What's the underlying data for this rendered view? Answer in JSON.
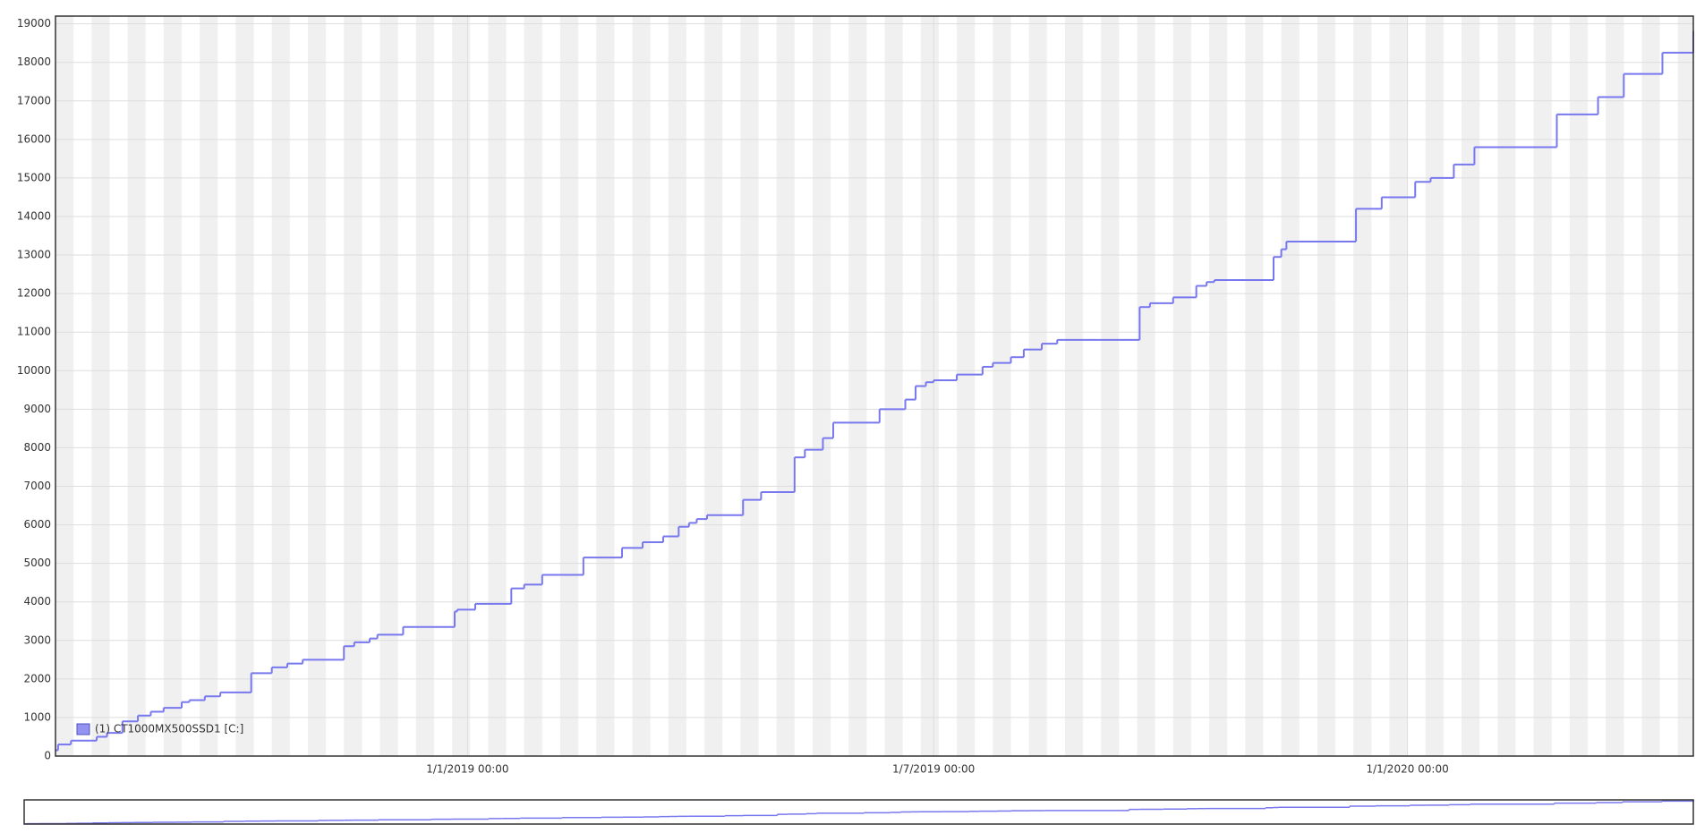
{
  "chart_data": {
    "type": "line",
    "step": "after",
    "grid": true,
    "legend": "lower left",
    "xlim": [
      "2018-07-25",
      "2020-04-21"
    ],
    "xticks": [
      {
        "value": "2019-01-01",
        "label": "1/1/2019 00:00"
      },
      {
        "value": "2019-07-01",
        "label": "1/7/2019 00:00"
      },
      {
        "value": "2020-01-01",
        "label": "1/1/2020 00:00"
      }
    ],
    "ylim": [
      0,
      19200
    ],
    "yticks": [
      0,
      1000,
      2000,
      3000,
      4000,
      5000,
      6000,
      7000,
      8000,
      9000,
      10000,
      11000,
      12000,
      13000,
      14000,
      15000,
      16000,
      17000,
      18000,
      19000
    ],
    "x": [
      "2018-07-25",
      "2018-07-26",
      "2018-07-31",
      "2018-08-10",
      "2018-08-14",
      "2018-08-20",
      "2018-08-26",
      "2018-08-31",
      "2018-09-05",
      "2018-09-12",
      "2018-09-15",
      "2018-09-21",
      "2018-09-27",
      "2018-10-09",
      "2018-10-17",
      "2018-10-23",
      "2018-10-29",
      "2018-11-14",
      "2018-11-18",
      "2018-11-24",
      "2018-11-27",
      "2018-12-07",
      "2018-12-27",
      "2018-12-28",
      "2019-01-04",
      "2019-01-18",
      "2019-01-23",
      "2019-01-30",
      "2019-02-15",
      "2019-03-02",
      "2019-03-10",
      "2019-03-18",
      "2019-03-24",
      "2019-03-28",
      "2019-03-31",
      "2019-04-04",
      "2019-04-18",
      "2019-04-25",
      "2019-05-08",
      "2019-05-12",
      "2019-05-19",
      "2019-05-23",
      "2019-06-10",
      "2019-06-20",
      "2019-06-24",
      "2019-06-28",
      "2019-07-01",
      "2019-07-10",
      "2019-07-20",
      "2019-07-24",
      "2019-07-31",
      "2019-08-05",
      "2019-08-12",
      "2019-08-18",
      "2019-09-19",
      "2019-09-23",
      "2019-10-02",
      "2019-10-11",
      "2019-10-15",
      "2019-10-18",
      "2019-11-10",
      "2019-11-13",
      "2019-11-15",
      "2019-12-12",
      "2019-12-22",
      "2020-01-04",
      "2020-01-10",
      "2020-01-19",
      "2020-01-27",
      "2020-02-28",
      "2020-03-15",
      "2020-03-25",
      "2020-04-09",
      "2020-04-21"
    ],
    "series": [
      {
        "name": "(1) CT1000MX500SSD1 [C:]",
        "color": "#7878ee",
        "values": [
          150,
          300,
          400,
          500,
          600,
          900,
          1050,
          1150,
          1250,
          1400,
          1450,
          1550,
          1650,
          2150,
          2300,
          2400,
          2500,
          2850,
          2950,
          3050,
          3150,
          3350,
          3750,
          3800,
          3950,
          4350,
          4450,
          4700,
          5150,
          5400,
          5550,
          5700,
          5950,
          6050,
          6150,
          6250,
          6650,
          6850,
          7750,
          7950,
          8250,
          8650,
          9000,
          9250,
          9600,
          9700,
          9750,
          9900,
          10100,
          10200,
          10350,
          10550,
          10700,
          10800,
          11650,
          11750,
          11900,
          12200,
          12300,
          12350,
          12950,
          13150,
          13350,
          14200,
          14500,
          14900,
          15000,
          15350,
          15800,
          16650,
          17100,
          17700,
          18250,
          18800
        ]
      }
    ]
  }
}
